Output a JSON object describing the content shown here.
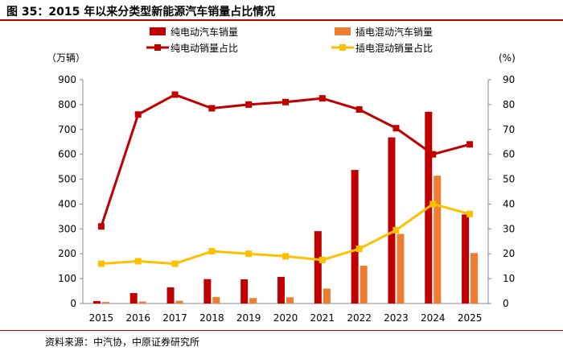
{
  "figure": {
    "title": "图 35：2015 年以来分类型新能源汽车销量占比情况",
    "source": "资料来源：中汽协，中原证券研究所"
  },
  "chart_data": {
    "type": "bar",
    "categories": [
      "2015",
      "2016",
      "2017",
      "2018",
      "2019",
      "2020",
      "2021",
      "2022",
      "2023",
      "2024",
      "2025"
    ],
    "left_unit": "（万辆）",
    "right_unit": "(%)",
    "left_ylim": [
      0,
      900
    ],
    "right_ylim": [
      0,
      90
    ],
    "left_ticks": [
      "0",
      "100",
      "200",
      "300",
      "400",
      "500",
      "600",
      "700",
      "800",
      "900"
    ],
    "right_ticks": [
      "0",
      "10",
      "20",
      "30",
      "40",
      "50",
      "60",
      "70",
      "80",
      "90"
    ],
    "series": [
      {
        "name": "纯电动汽车销量",
        "kind": "bar",
        "axis": "left",
        "color": "#c00000",
        "values": [
          10,
          42,
          65,
          98,
          97,
          107,
          291,
          537,
          668,
          771,
          358
        ]
      },
      {
        "name": "插电混动汽车销量",
        "kind": "bar",
        "axis": "left",
        "color": "#ed7d31",
        "values": [
          6,
          8,
          11,
          26,
          22,
          25,
          60,
          152,
          280,
          514,
          203
        ]
      },
      {
        "name": "纯电动销量占比",
        "kind": "line",
        "axis": "right",
        "color": "#c00000",
        "marker": "square",
        "values": [
          31,
          76,
          84,
          78.5,
          80,
          81,
          82.5,
          78,
          70.5,
          60,
          64
        ]
      },
      {
        "name": "插电混动销量占比",
        "kind": "line",
        "axis": "right",
        "color": "#ffc000",
        "marker": "square",
        "values": [
          16,
          17,
          16,
          21,
          20,
          19,
          17.5,
          22,
          29.5,
          40,
          36
        ]
      }
    ]
  }
}
